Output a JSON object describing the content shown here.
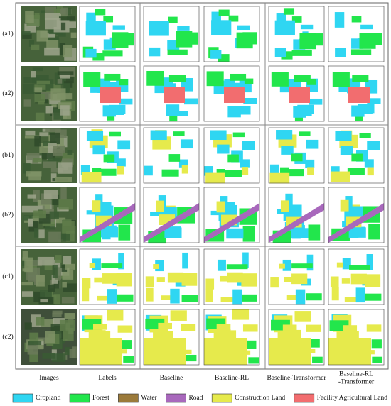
{
  "figure": {
    "row_labels": [
      "(a1)",
      "(a2)",
      "(b1)",
      "(b2)",
      "(c1)",
      "(c2)"
    ],
    "column_labels": [
      [
        "Images"
      ],
      [
        "Labels"
      ],
      [
        "Baseline"
      ],
      [
        "Baseline-RL"
      ],
      [
        "Baseline-Transformer"
      ],
      [
        "Baseline-RL",
        "-Transformer"
      ]
    ],
    "legend": [
      {
        "name": "Cropland",
        "color": "#2fd6f2"
      },
      {
        "name": "Forest",
        "color": "#22e64c"
      },
      {
        "name": "Water",
        "color": "#9b7a3a"
      },
      {
        "name": "Road",
        "color": "#a868bc"
      },
      {
        "name": "Construction Land",
        "color": "#e6ea4c"
      },
      {
        "name": "Facility Agricultural Land",
        "color": "#f26d6f"
      }
    ]
  }
}
